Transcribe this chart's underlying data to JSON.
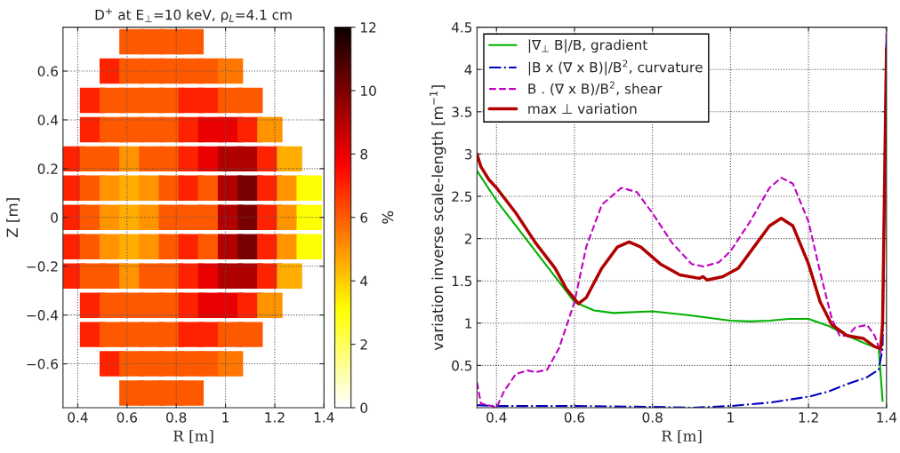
{
  "chart_data": [
    {
      "type": "scatter",
      "title": "D$^{+}$ at E$_{⊥}$=10 keV, ρ$_{L}$=4.1 cm",
      "xlabel": "R [m]",
      "ylabel": "Z [m]",
      "clabel": "%",
      "marker": "square",
      "xlim": [
        0.34,
        1.4
      ],
      "ylim": [
        -0.78,
        0.78
      ],
      "xticks": [
        0.4,
        0.6,
        0.8,
        1,
        1.2,
        1.4
      ],
      "yticks": [
        {
          "value": -0.6,
          "label": "−0.6"
        },
        {
          "value": -0.4,
          "label": "−0.4"
        },
        {
          "value": -0.2,
          "label": "−0.2"
        },
        0,
        0.2,
        0.4,
        0.6
      ],
      "clim": [
        0,
        12
      ],
      "cticks": [
        0,
        2,
        4,
        6,
        8,
        10,
        12
      ],
      "grid": true,
      "x": [
        0.62,
        0.7,
        0.78,
        0.86,
        0.54,
        0.62,
        0.7,
        0.78,
        0.86,
        0.94,
        1.02,
        0.46,
        0.54,
        0.62,
        0.7,
        0.78,
        0.86,
        0.94,
        1.02,
        1.1,
        0.46,
        0.54,
        0.62,
        0.7,
        0.78,
        0.86,
        0.94,
        1.02,
        1.1,
        1.18,
        0.38,
        0.46,
        0.54,
        0.62,
        0.7,
        0.78,
        0.86,
        0.94,
        1.02,
        1.1,
        1.18,
        1.26,
        0.38,
        0.46,
        0.54,
        0.62,
        0.7,
        0.78,
        0.86,
        0.94,
        1.02,
        1.1,
        1.18,
        1.26,
        1.34,
        0.38,
        0.46,
        0.54,
        0.62,
        0.7,
        0.78,
        0.86,
        0.94,
        1.02,
        1.1,
        1.18,
        1.26,
        1.34,
        0.38,
        0.46,
        0.54,
        0.62,
        0.7,
        0.78,
        0.86,
        0.94,
        1.02,
        1.1,
        1.18,
        1.26,
        1.34,
        0.38,
        0.46,
        0.54,
        0.62,
        0.7,
        0.78,
        0.86,
        0.94,
        1.02,
        1.1,
        1.18,
        1.26,
        0.46,
        0.54,
        0.62,
        0.7,
        0.78,
        0.86,
        0.94,
        1.02,
        1.1,
        1.18,
        0.46,
        0.54,
        0.62,
        0.7,
        0.78,
        0.86,
        0.94,
        1.02,
        1.1,
        0.54,
        0.62,
        0.7,
        0.78,
        0.86,
        0.94,
        1.02,
        0.62,
        0.7,
        0.78,
        0.86
      ],
      "values": [
        0.72,
        0.72,
        0.72,
        0.72,
        0.6,
        0.6,
        0.6,
        0.6,
        0.6,
        0.6,
        0.6,
        0.48,
        0.48,
        0.48,
        0.48,
        0.48,
        0.48,
        0.48,
        0.48,
        0.48,
        0.36,
        0.36,
        0.36,
        0.36,
        0.36,
        0.36,
        0.36,
        0.36,
        0.36,
        0.36,
        0.24,
        0.24,
        0.24,
        0.24,
        0.24,
        0.24,
        0.24,
        0.24,
        0.24,
        0.24,
        0.24,
        0.24,
        0.12,
        0.12,
        0.12,
        0.12,
        0.12,
        0.12,
        0.12,
        0.12,
        0.12,
        0.12,
        0.12,
        0.12,
        0.12,
        0,
        0,
        0,
        0,
        0,
        0,
        0,
        0,
        0,
        0,
        0,
        0,
        0,
        -0.12,
        -0.12,
        -0.12,
        -0.12,
        -0.12,
        -0.12,
        -0.12,
        -0.12,
        -0.12,
        -0.12,
        -0.12,
        -0.12,
        -0.12,
        -0.24,
        -0.24,
        -0.24,
        -0.24,
        -0.24,
        -0.24,
        -0.24,
        -0.24,
        -0.24,
        -0.24,
        -0.24,
        -0.24,
        -0.36,
        -0.36,
        -0.36,
        -0.36,
        -0.36,
        -0.36,
        -0.36,
        -0.36,
        -0.36,
        -0.36,
        -0.48,
        -0.48,
        -0.48,
        -0.48,
        -0.48,
        -0.48,
        -0.48,
        -0.48,
        -0.48,
        -0.6,
        -0.6,
        -0.6,
        -0.6,
        -0.6,
        -0.6,
        -0.6,
        -0.72,
        -0.72,
        -0.72,
        -0.72
      ],
      "cvalues": [
        6,
        6,
        6,
        6,
        7,
        6,
        6,
        6,
        6,
        6,
        5.5,
        7,
        6,
        6,
        6,
        6,
        7,
        7,
        6,
        6,
        7,
        6,
        6,
        6,
        6,
        7,
        8,
        8,
        7,
        5,
        7,
        6,
        6,
        5,
        6,
        6,
        7,
        8,
        9,
        9,
        7,
        4.5,
        7,
        6,
        5,
        4.5,
        5,
        6,
        7,
        6,
        9,
        10,
        7,
        5,
        3,
        7,
        6,
        5,
        4.5,
        5,
        6,
        6,
        6,
        9,
        10,
        7,
        5,
        3,
        7,
        6,
        5,
        4.5,
        5,
        6,
        7,
        6,
        9,
        10,
        7,
        5,
        3,
        7,
        6,
        6,
        5,
        6,
        6,
        7,
        8,
        9,
        9,
        7,
        4.5,
        7,
        6,
        6,
        6,
        6,
        7,
        8,
        8,
        7,
        5,
        7,
        6,
        6,
        6,
        6,
        7,
        7,
        6,
        6,
        7,
        6,
        6,
        6,
        6,
        6,
        5.5,
        6,
        6,
        6,
        6
      ]
    },
    {
      "type": "line",
      "xlabel": "R [m]",
      "ylabel": "variation inverse scale-length [m$^{−1}$]",
      "xlim": [
        0.35,
        1.4
      ],
      "ylim": [
        0,
        4.5
      ],
      "xticks": [
        0.4,
        0.6,
        0.8,
        1,
        1.2,
        1.4
      ],
      "yticks": [
        0.5,
        1,
        1.5,
        2,
        2.5,
        3,
        3.5,
        4,
        4.5
      ],
      "grid": true,
      "legend": "top left",
      "series": [
        {
          "name": "|∇$_{⊥}$ B|/B, gradient",
          "color": "#00b000",
          "line_style": "solid",
          "x": [
            0.35,
            0.4,
            0.45,
            0.5,
            0.55,
            0.6,
            0.65,
            0.7,
            0.8,
            0.9,
            1.0,
            1.05,
            1.1,
            1.15,
            1.2,
            1.25,
            1.3,
            1.35,
            1.38,
            1.39
          ],
          "values": [
            2.8,
            2.45,
            2.15,
            1.85,
            1.55,
            1.25,
            1.15,
            1.12,
            1.14,
            1.09,
            1.03,
            1.02,
            1.03,
            1.05,
            1.05,
            0.97,
            0.85,
            0.75,
            0.7,
            0.08
          ]
        },
        {
          "name": "|B x (∇ x B)|/B$^{2}$, curvature",
          "color": "#0000c0",
          "line_style": "dashdot",
          "x": [
            0.35,
            0.4,
            0.6,
            0.8,
            0.9,
            1.0,
            1.1,
            1.2,
            1.25,
            1.3,
            1.35,
            1.38,
            1.39,
            1.4
          ],
          "values": [
            0.03,
            0.02,
            0.02,
            0.01,
            0.0,
            0.02,
            0.06,
            0.13,
            0.19,
            0.28,
            0.36,
            0.45,
            0.7,
            4.4
          ]
        },
        {
          "name": "B . (∇ x B)/B$^{2}$, shear",
          "color": "#c000c0",
          "line_style": "dashed",
          "x": [
            0.35,
            0.36,
            0.38,
            0.4,
            0.42,
            0.45,
            0.48,
            0.5,
            0.53,
            0.56,
            0.6,
            0.63,
            0.67,
            0.72,
            0.76,
            0.8,
            0.85,
            0.9,
            0.93,
            0.97,
            1.0,
            1.05,
            1.1,
            1.13,
            1.16,
            1.2,
            1.23,
            1.26,
            1.28,
            1.3,
            1.32,
            1.35,
            1.37,
            1.385,
            1.39,
            1.4
          ],
          "values": [
            0.3,
            0.05,
            0.03,
            0.0,
            0.2,
            0.4,
            0.44,
            0.42,
            0.45,
            0.7,
            1.25,
            1.9,
            2.4,
            2.6,
            2.55,
            2.3,
            1.95,
            1.7,
            1.67,
            1.72,
            1.85,
            2.2,
            2.6,
            2.72,
            2.65,
            2.2,
            1.6,
            1.05,
            0.85,
            0.85,
            0.95,
            0.98,
            0.85,
            0.65,
            1.0,
            4.5
          ]
        },
        {
          "name": "max ⊥ variation",
          "color": "#b00000",
          "line_style": "solid",
          "x": [
            0.35,
            0.36,
            0.38,
            0.4,
            0.45,
            0.5,
            0.55,
            0.58,
            0.61,
            0.63,
            0.67,
            0.71,
            0.74,
            0.77,
            0.82,
            0.87,
            0.92,
            0.93,
            0.94,
            0.98,
            1.02,
            1.06,
            1.1,
            1.13,
            1.16,
            1.2,
            1.23,
            1.26,
            1.3,
            1.34,
            1.37,
            1.385,
            1.39,
            1.4
          ],
          "values": [
            3.0,
            2.85,
            2.7,
            2.6,
            2.3,
            1.95,
            1.65,
            1.4,
            1.23,
            1.3,
            1.65,
            1.9,
            1.96,
            1.9,
            1.7,
            1.57,
            1.53,
            1.55,
            1.51,
            1.55,
            1.65,
            1.9,
            2.15,
            2.24,
            2.15,
            1.7,
            1.25,
            0.98,
            0.85,
            0.82,
            0.72,
            0.7,
            1.0,
            4.25
          ]
        }
      ]
    }
  ]
}
